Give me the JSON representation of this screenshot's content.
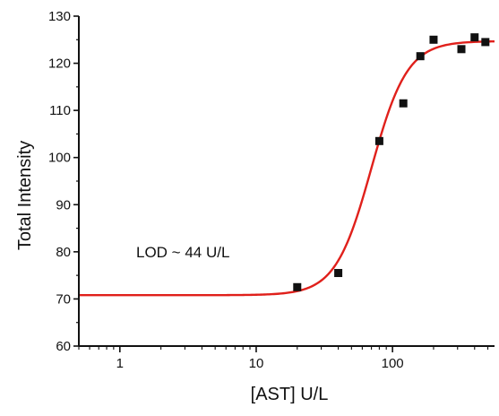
{
  "chart_data": {
    "type": "scatter",
    "xlabel": "[AST] U/L",
    "ylabel": "Total Intensity",
    "xscale": "log",
    "xlim": [
      0.5,
      560
    ],
    "ylim": [
      60,
      130
    ],
    "xticks": [
      1,
      10,
      100
    ],
    "xtick_labels": [
      "1",
      "10",
      "100"
    ],
    "yticks": [
      60,
      70,
      80,
      90,
      100,
      110,
      120,
      130
    ],
    "ytick_labels": [
      "60",
      "70",
      "80",
      "90",
      "100",
      "110",
      "120",
      "130"
    ],
    "grid": false,
    "annotation": "LOD ~ 44 U/L",
    "colors": {
      "points": "#111111",
      "fit": "#e0201b"
    },
    "series": [
      {
        "type": "scatter",
        "marker": "square",
        "x": [
          20,
          40,
          80,
          120,
          160,
          200,
          320,
          400,
          480
        ],
        "y": [
          72.5,
          75.5,
          103.5,
          111.5,
          121.5,
          125,
          123,
          125.5,
          124.5
        ]
      }
    ],
    "fit": {
      "type": "sigmoid",
      "bottom": 70.8,
      "top": 124.7,
      "midpoint": 70,
      "hill": 3.3
    }
  }
}
